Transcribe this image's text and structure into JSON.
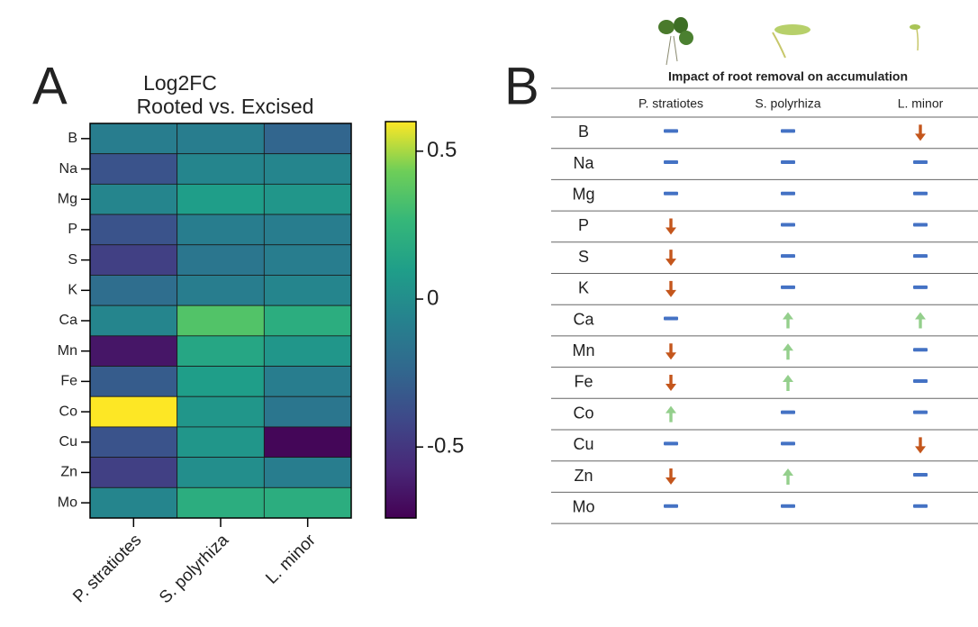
{
  "panel_a_label": "A",
  "chart_data": {
    "type": "heatmap",
    "title": [
      "Log2FC",
      "Rooted vs. Excised"
    ],
    "x": [
      "P. stratiotes",
      "S. polyrhiza",
      "L. minor"
    ],
    "y": [
      "B",
      "Na",
      "Mg",
      "P",
      "S",
      "K",
      "Ca",
      "Mn",
      "Fe",
      "Co",
      "Cu",
      "Zn",
      "Mo"
    ],
    "values": [
      [
        -0.1,
        -0.1,
        -0.25
      ],
      [
        -0.35,
        -0.05,
        -0.05
      ],
      [
        -0.05,
        0.1,
        0.05
      ],
      [
        -0.35,
        -0.1,
        -0.1
      ],
      [
        -0.45,
        -0.15,
        -0.1
      ],
      [
        -0.2,
        -0.1,
        -0.05
      ],
      [
        -0.05,
        0.35,
        0.2
      ],
      [
        -0.65,
        0.15,
        0.05
      ],
      [
        -0.3,
        0.1,
        -0.1
      ],
      [
        0.6,
        0.05,
        -0.15
      ],
      [
        -0.35,
        0.05,
        -0.72
      ],
      [
        -0.45,
        0.0,
        -0.1
      ],
      [
        -0.05,
        0.2,
        0.2
      ]
    ],
    "colormap": "viridis",
    "clim": [
      -0.74,
      0.6
    ],
    "cticks": [
      0.5,
      0,
      -0.5
    ]
  },
  "panel_b_label": "B",
  "table": {
    "title": "Impact of root removal on accumulation",
    "columns": [
      "P. stratiotes",
      "S. polyrhiza",
      "L. minor"
    ],
    "rows": [
      {
        "label": "B",
        "effects": [
          0,
          0,
          -1
        ]
      },
      {
        "label": "Na",
        "effects": [
          0,
          0,
          0
        ]
      },
      {
        "label": "Mg",
        "effects": [
          0,
          0,
          0
        ]
      },
      {
        "label": "P",
        "effects": [
          -1,
          0,
          0
        ]
      },
      {
        "label": "S",
        "effects": [
          -1,
          0,
          0
        ]
      },
      {
        "label": "K",
        "effects": [
          -1,
          0,
          0
        ]
      },
      {
        "label": "Ca",
        "effects": [
          0,
          1,
          1
        ]
      },
      {
        "label": "Mn",
        "effects": [
          -1,
          1,
          0
        ]
      },
      {
        "label": "Fe",
        "effects": [
          -1,
          1,
          0
        ]
      },
      {
        "label": "Co",
        "effects": [
          1,
          0,
          0
        ]
      },
      {
        "label": "Cu",
        "effects": [
          0,
          0,
          -1
        ]
      },
      {
        "label": "Zn",
        "effects": [
          -1,
          1,
          0
        ]
      },
      {
        "label": "Mo",
        "effects": [
          0,
          0,
          0
        ]
      }
    ],
    "colors": {
      "down": "#c4561c",
      "neutral": "#4472c4",
      "up": "#94cf8c"
    }
  }
}
